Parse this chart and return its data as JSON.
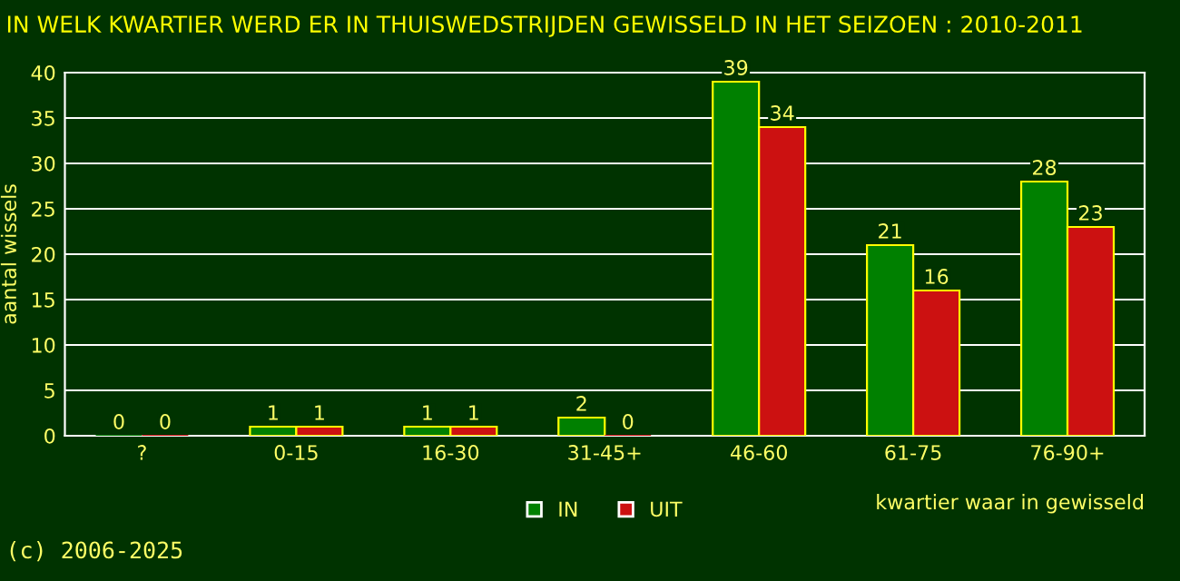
{
  "chart_data": {
    "type": "bar",
    "title": "IN WELK KWARTIER WERD ER IN THUISWEDSTRIJDEN GEWISSELD IN HET SEIZOEN : 2010-2011",
    "xlabel": "kwartier waar in gewisseld",
    "ylabel": "aantal wissels",
    "categories": [
      "?",
      "0-15",
      "16-30",
      "31-45+",
      "46-60",
      "61-75",
      "76-90+"
    ],
    "series": [
      {
        "name": "IN",
        "color": "#008000",
        "values": [
          0,
          1,
          1,
          2,
          39,
          21,
          28
        ]
      },
      {
        "name": "UIT",
        "color": "#cc1111",
        "values": [
          0,
          1,
          1,
          0,
          34,
          16,
          23
        ]
      }
    ],
    "ylim": [
      0,
      40
    ],
    "yticks": [
      0,
      5,
      10,
      15,
      20,
      25,
      30,
      35,
      40
    ],
    "grid": "y",
    "legend": "bottom",
    "data_labels": true,
    "annotations": [
      "(c) 2006-2025"
    ]
  }
}
